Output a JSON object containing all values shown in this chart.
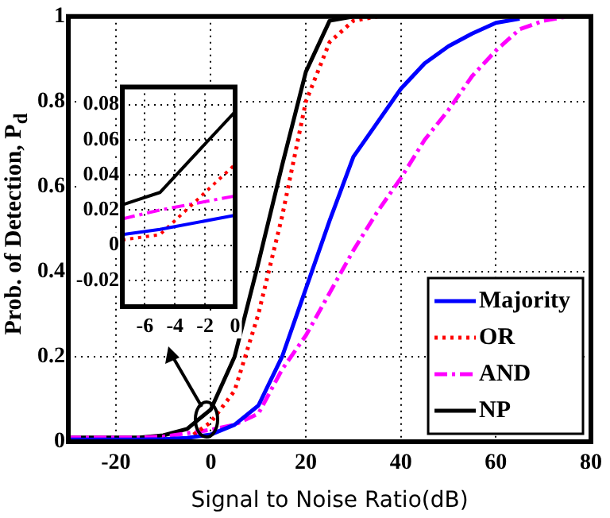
{
  "chart_data": [
    {
      "type": "line",
      "xlabel": "Signal to Noise Ratio(dB)",
      "ylabel": "Prob. of Detection, P$_{d}$",
      "x": [
        -30,
        -25,
        -20,
        -15,
        -10,
        -5,
        0,
        5,
        10,
        15,
        20,
        25,
        30,
        35,
        40,
        45,
        50,
        55,
        60,
        65,
        70,
        75,
        80
      ],
      "series": [
        {
          "name": "Majority",
          "color": "#0000ff",
          "line_style": "solid",
          "values": [
            0.005,
            0.005,
            0.005,
            0.005,
            0.006,
            0.009,
            0.017,
            0.04,
            0.085,
            0.2,
            0.36,
            0.52,
            0.67,
            0.75,
            0.83,
            0.89,
            0.93,
            0.96,
            0.985,
            0.995,
            null,
            null,
            null
          ]
        },
        {
          "name": "OR",
          "color": "#ff0000",
          "line_style": "dotted",
          "values": [
            null,
            null,
            null,
            null,
            null,
            0.006,
            0.046,
            0.12,
            0.3,
            0.53,
            0.8,
            0.94,
            0.99,
            1,
            null,
            null,
            null,
            null,
            null,
            null,
            null,
            null,
            null
          ]
        },
        {
          "name": "AND",
          "color": "#ff00ff",
          "line_style": "dashed",
          "values": [
            0.01,
            0.01,
            0.01,
            0.01,
            0.012,
            0.02,
            0.028,
            0.04,
            0.066,
            0.17,
            0.25,
            0.35,
            0.45,
            0.54,
            0.62,
            0.71,
            0.78,
            0.86,
            0.92,
            0.97,
            0.99,
            1,
            null
          ]
        },
        {
          "name": "NP",
          "color": "#000000",
          "line_style": "solid",
          "values": [
            0.01,
            0.01,
            0.01,
            0.01,
            0.015,
            0.03,
            0.076,
            0.2,
            0.42,
            0.65,
            0.87,
            0.99,
            1,
            1,
            1,
            1,
            1,
            1,
            1,
            1,
            1,
            1,
            1
          ]
        }
      ],
      "xlim": [
        -30,
        80
      ],
      "xticks": [
        -20,
        0,
        20,
        40,
        60,
        80
      ],
      "ylim": [
        0,
        1
      ],
      "yticks": [
        0,
        0.2,
        0.4,
        0.6,
        0.8,
        1
      ],
      "grid": true,
      "legend": "bottom right",
      "marker": "none"
    },
    {
      "type": "line",
      "x": [
        -7.5,
        -5,
        0
      ],
      "series": [
        {
          "color": "#0000ff",
          "line_style": "solid",
          "values": [
            0.006,
            0.009,
            0.017
          ]
        },
        {
          "color": "#ff0000",
          "line_style": "dotted",
          "values": [
            0.003,
            0.006,
            0.046
          ]
        },
        {
          "color": "#ff00ff",
          "line_style": "dashed",
          "values": [
            0.015,
            0.02,
            0.028
          ]
        },
        {
          "color": "#000000",
          "line_style": "solid",
          "values": [
            0.023,
            0.03,
            0.076
          ]
        }
      ],
      "xlim": [
        -7.5,
        0
      ],
      "xticks": [
        -6,
        -4,
        -2,
        0
      ],
      "ylim": [
        -0.035,
        0.09
      ],
      "yticks": [
        -0.02,
        0,
        0.02,
        0.04,
        0.06,
        0.08
      ],
      "grid": true,
      "legend": false,
      "marker": "none"
    }
  ]
}
